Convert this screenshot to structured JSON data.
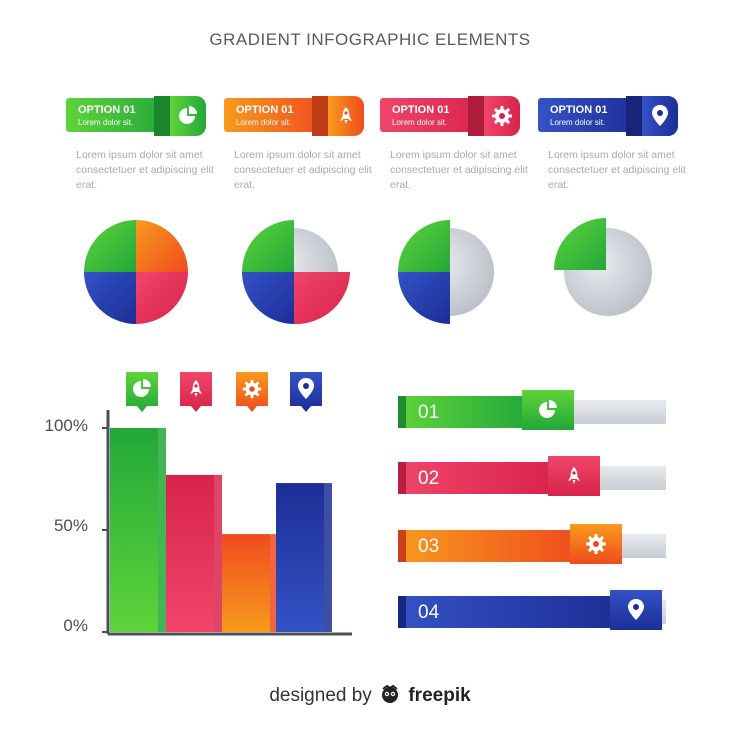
{
  "title": "GRADIENT INFOGRAPHIC ELEMENTS",
  "options": [
    {
      "title": "OPTION 01",
      "sub": "Lorem dolor sit.",
      "icon": "pie-chart-icon",
      "desc": "Lorem ipsum dolor sit amet consectetuer et adipiscing elit erat."
    },
    {
      "title": "OPTION 01",
      "sub": "Lorem dolor sit.",
      "icon": "rocket-icon",
      "desc": "Lorem ipsum dolor sit amet consectetuer et adipiscing elit erat."
    },
    {
      "title": "OPTION 01",
      "sub": "Lorem dolor sit.",
      "icon": "gear-icon",
      "desc": "Lorem ipsum dolor sit amet consectetuer et adipiscing elit erat."
    },
    {
      "title": "OPTION 01",
      "sub": "Lorem dolor sit.",
      "icon": "location-pin-icon",
      "desc": "Lorem ipsum dolor sit amet consectetuer et adipiscing elit erat."
    }
  ],
  "colors": {
    "green": "#3cbf3a",
    "orange": "#f36b1c",
    "red": "#e8315a",
    "blue": "#2a44b0",
    "gray": "#c8ccd3"
  },
  "pies": [
    {
      "filled_quarters": 4
    },
    {
      "filled_quarters": 3
    },
    {
      "filled_quarters": 2
    },
    {
      "filled_quarters": 1
    }
  ],
  "chart_data": {
    "type": "bar",
    "categories": [
      "",
      "",
      "",
      ""
    ],
    "values": [
      100,
      77,
      48,
      73
    ],
    "icons": [
      "pie-chart-icon",
      "rocket-icon",
      "gear-icon",
      "location-pin-icon"
    ],
    "ylim": [
      0,
      100
    ],
    "yticks": [
      "0%",
      "50%",
      "100%"
    ]
  },
  "progress": [
    {
      "label": "01",
      "icon": "pie-chart-icon",
      "value": 0.42
    },
    {
      "label": "02",
      "icon": "rocket-icon",
      "value": 0.55
    },
    {
      "label": "03",
      "icon": "gear-icon",
      "value": 0.66
    },
    {
      "label": "04",
      "icon": "location-pin-icon",
      "value": 0.86
    }
  ],
  "footer": {
    "prefix": "designed by",
    "brand": "freepik"
  }
}
